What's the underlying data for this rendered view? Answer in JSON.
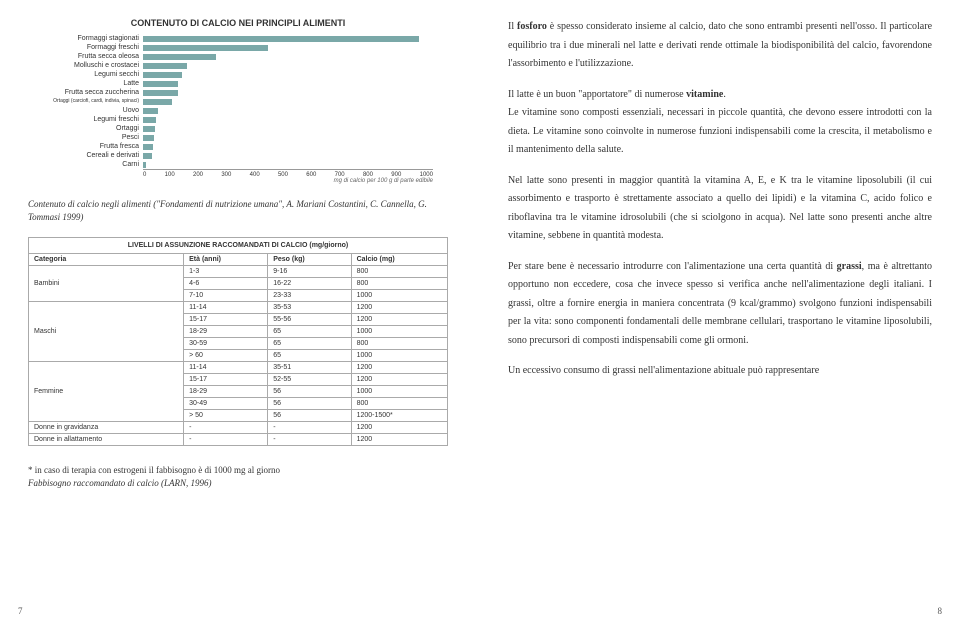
{
  "chart": {
    "title": "CONTENUTO DI CALCIO NEI PRINCIPLI ALIMENTI",
    "type": "bar",
    "axis_label": "mg di calcio per 100 g di parte edibile",
    "xlim": [
      0,
      1000
    ],
    "xtick_step": 100,
    "bar_color": "#7aa8a8",
    "categories": [
      {
        "label": "Formaggi stagionati",
        "value": 950
      },
      {
        "label": "Formaggi freschi",
        "value": 430
      },
      {
        "label": "Frutta secca oleosa",
        "value": 250
      },
      {
        "label": "Molluschi e crostacei",
        "value": 150
      },
      {
        "label": "Legumi secchi",
        "value": 135
      },
      {
        "label": "Latte",
        "value": 120
      },
      {
        "label": "Frutta secca zuccherina",
        "value": 120
      },
      {
        "label": "Ortaggi (carciofi, cardi, indivia, spinaci)",
        "value": 100,
        "sub": true
      },
      {
        "label": "Uovo",
        "value": 50
      },
      {
        "label": "Legumi freschi",
        "value": 45
      },
      {
        "label": "Ortaggi",
        "value": 40
      },
      {
        "label": "Pesci",
        "value": 38
      },
      {
        "label": "Frutta fresca",
        "value": 35
      },
      {
        "label": "Cereali e derivati",
        "value": 30
      },
      {
        "label": "Carni",
        "value": 12
      }
    ]
  },
  "chart_caption": "Contenuto di calcio negli alimenti (\"Fondamenti di nutrizione umana\", A. Mariani Costantini, C. Cannella, G. Tommasi 1999)",
  "table": {
    "title": "LIVELLI DI ASSUNZIONE RACCOMANDATI DI CALCIO (mg/giorno)",
    "columns": [
      "Categoria",
      "Età (anni)",
      "Peso (kg)",
      "Calcio (mg)"
    ],
    "groups": [
      {
        "cat": "Bambini",
        "rows": [
          [
            "1-3",
            "9-16",
            "800"
          ],
          [
            "4-6",
            "16-22",
            "800"
          ],
          [
            "7-10",
            "23-33",
            "1000"
          ]
        ]
      },
      {
        "cat": "Maschi",
        "rows": [
          [
            "11-14",
            "35-53",
            "1200"
          ],
          [
            "15-17",
            "55-56",
            "1200"
          ],
          [
            "18-29",
            "65",
            "1000"
          ],
          [
            "30-59",
            "65",
            "800"
          ],
          [
            "> 60",
            "65",
            "1000"
          ]
        ]
      },
      {
        "cat": "Femmine",
        "rows": [
          [
            "11-14",
            "35-51",
            "1200"
          ],
          [
            "15-17",
            "52-55",
            "1200"
          ],
          [
            "18-29",
            "56",
            "1000"
          ],
          [
            "30-49",
            "56",
            "800"
          ],
          [
            "> 50",
            "56",
            "1200-1500*"
          ]
        ]
      },
      {
        "cat": "Donne in gravidanza",
        "rows": [
          [
            "-",
            "-",
            "1200"
          ]
        ]
      },
      {
        "cat": "Donne in allattamento",
        "rows": [
          [
            "-",
            "-",
            "1200"
          ]
        ]
      }
    ]
  },
  "footnote_star": "* in caso di terapia con estrogeni il fabbisogno è di 1000 mg al giorno",
  "footnote_ital": "Fabbisogno raccomandato di calcio (LARN, 1996)",
  "page_left_num": "7",
  "page_right_num": "8",
  "paras": {
    "p1": "Il fosforo è spesso considerato insieme al calcio, dato che sono entrambi presenti nell'osso. Il particolare equilibrio tra i due minerali nel latte e derivati rende ottimale la biodisponibilità del calcio, favorendone l'assorbimento e l'utilizzazione.",
    "p2a": "Il latte è un buon \"apportatore\" di numerose ",
    "p2b": "vitamine",
    "p2c": ".",
    "p3": "Le vitamine sono composti essenziali, necessari in piccole quantità, che devono essere introdotti con la dieta. Le vitamine sono coinvolte in numerose funzioni indispensabili come la crescita, il metabolismo e il mantenimento della salute.",
    "p4": "Nel latte sono presenti in maggior quantità la vitamina A, E, e K tra le vitamine liposolubili (il cui assorbimento e trasporto è strettamente associato a quello dei lipidi) e la vitamina C, acido folico e riboflavina tra le vitamine idrosolubili (che si sciolgono in acqua). Nel latte sono presenti anche altre vitamine, sebbene in quantità modesta.",
    "p5a": "Per stare bene è necessario introdurre con l'alimentazione una certa quantità di ",
    "p5b": "grassi",
    "p5c": ", ma è altrettanto opportuno non eccedere, cosa che invece spesso si verifica anche nell'alimentazione degli italiani. I grassi, oltre a fornire energia in maniera concentrata (9 kcal/grammo) svolgono funzioni indispensabili per la vita: sono componenti fondamentali delle membrane cellulari, trasportano le vitamine liposolubili, sono precursori di composti indispensabili come gli ormoni.",
    "p6": "Un eccessivo consumo di grassi nell'alimentazione abituale può rappresentare"
  }
}
